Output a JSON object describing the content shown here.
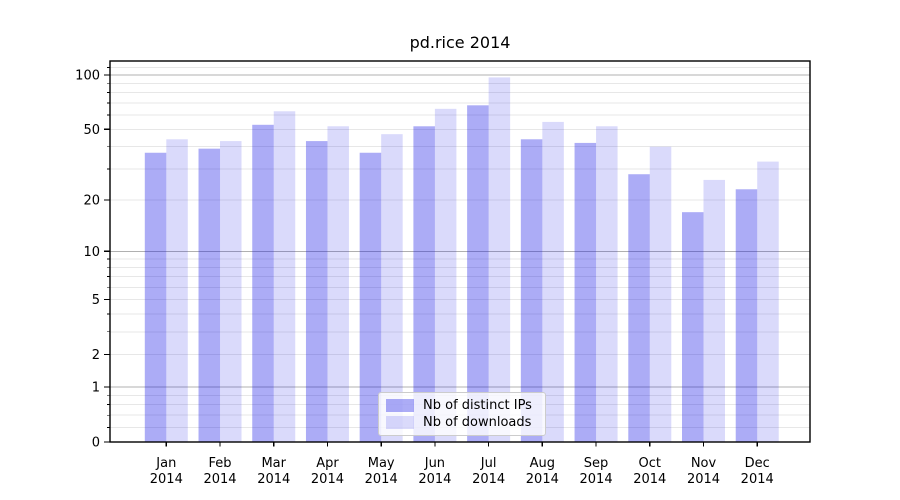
{
  "title": "pd.rice 2014",
  "colors": {
    "bar_distinct_ips": "rgba(25,25,230,0.36)",
    "bar_downloads": "rgba(25,25,230,0.16)",
    "major_grid": "#b0b0b0",
    "minor_grid": "#e7e7e7",
    "axis_line": "#000000",
    "tick_text": "#000000",
    "legend_border": "#cccccc"
  },
  "chart_data": {
    "type": "bar",
    "title": "pd.rice 2014",
    "categories": [
      "Jan 2014",
      "Feb 2014",
      "Mar 2014",
      "Apr 2014",
      "May 2014",
      "Jun 2014",
      "Jul 2014",
      "Aug 2014",
      "Sep 2014",
      "Oct 2014",
      "Nov 2014",
      "Dec 2014"
    ],
    "months": [
      "Jan",
      "Feb",
      "Mar",
      "Apr",
      "May",
      "Jun",
      "Jul",
      "Aug",
      "Sep",
      "Oct",
      "Nov",
      "Dec"
    ],
    "year_label": "2014",
    "series": [
      {
        "name": "Nb of distinct IPs",
        "values": [
          37,
          39,
          53,
          43,
          37,
          52,
          68,
          44,
          42,
          28,
          17,
          23
        ]
      },
      {
        "name": "Nb of downloads",
        "values": [
          44,
          43,
          63,
          52,
          47,
          65,
          97,
          55,
          52,
          40,
          26,
          33
        ]
      }
    ],
    "y_scale": "log1p",
    "y_tick_values": [
      100,
      50,
      20,
      10,
      5,
      2,
      1,
      0
    ],
    "y_gridlines_major": [
      100,
      10,
      1
    ],
    "y_gridlines_minor": [
      110,
      90,
      80,
      70,
      60,
      50,
      40,
      30,
      20,
      9,
      8,
      7,
      6,
      5,
      4,
      3,
      2,
      0.8,
      0.6,
      0.4,
      0.2
    ],
    "ylim": [
      0,
      120
    ],
    "grid": "both",
    "legend_position": "lower center",
    "xlabel": "",
    "ylabel": ""
  }
}
